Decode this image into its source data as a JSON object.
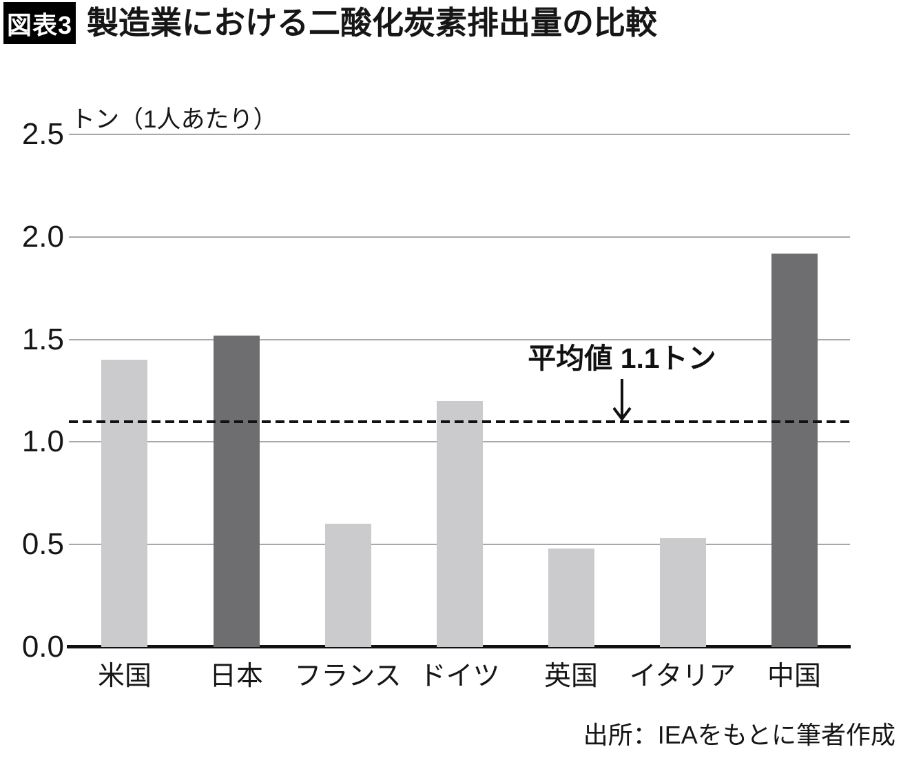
{
  "header": {
    "badge": "図表3",
    "title": "製造業における二酸化炭素排出量の比較"
  },
  "footer": {
    "source": "出所：IEAをもとに筆者作成"
  },
  "chart_data": {
    "type": "bar",
    "title": "製造業における二酸化炭素排出量の比較",
    "unit_label": "トン（1人あたり）",
    "xlabel": "",
    "ylabel": "トン（1人あたり）",
    "categories": [
      "米国",
      "日本",
      "フランス",
      "ドイツ",
      "英国",
      "イタリア",
      "中国"
    ],
    "values": [
      1.4,
      1.52,
      0.6,
      1.2,
      0.48,
      0.53,
      1.92
    ],
    "emphasized": [
      false,
      true,
      false,
      false,
      false,
      false,
      true
    ],
    "ylim": [
      0,
      2.5
    ],
    "yticks": [
      0.0,
      0.5,
      1.0,
      1.5,
      2.0,
      2.5
    ],
    "ytick_labels": [
      "0.0",
      "0.5",
      "1.0",
      "1.5",
      "2.0",
      "2.5"
    ],
    "average_value": 1.1,
    "average_label": "平均値 1.1トン",
    "grid": true,
    "legend": false,
    "colors": {
      "bar_light": "#cbcbcd",
      "bar_dark": "#6e6e70",
      "gridline": "#a8a8a8",
      "axis": "#111111",
      "average_line": "#111111"
    }
  }
}
